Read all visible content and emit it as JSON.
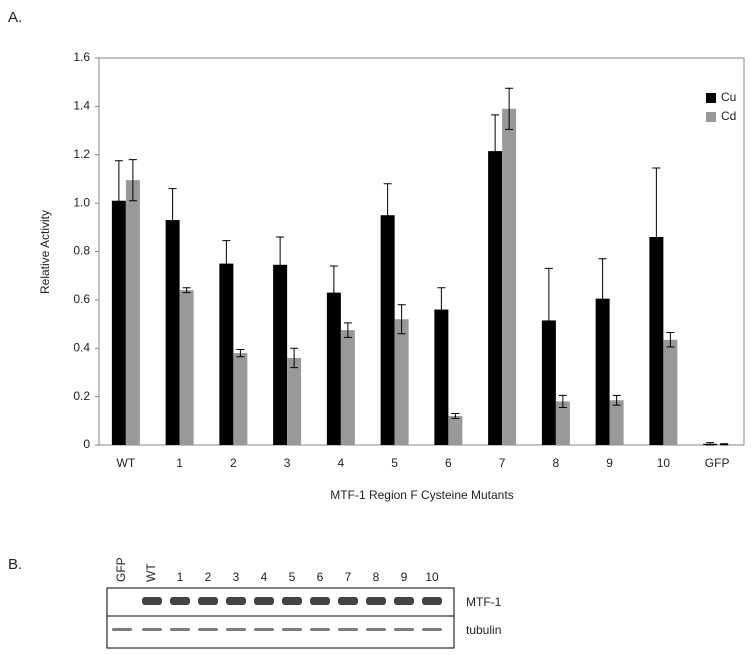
{
  "panel_a": "A.",
  "panel_b": "B.",
  "chart_data": {
    "type": "bar",
    "x_label": "MTF-1 Region F Cysteine Mutants",
    "y_label": "Relative Activity",
    "categories": [
      "WT",
      "1",
      "2",
      "3",
      "4",
      "5",
      "6",
      "7",
      "8",
      "9",
      "10",
      "GFP"
    ],
    "series": [
      {
        "name": "Cu",
        "color": "#000000",
        "values": [
          1.01,
          0.93,
          0.75,
          0.745,
          0.63,
          0.95,
          0.56,
          1.215,
          0.515,
          0.605,
          0.86,
          0.005
        ],
        "errors": [
          0.165,
          0.13,
          0.095,
          0.115,
          0.11,
          0.13,
          0.09,
          0.15,
          0.215,
          0.165,
          0.285,
          0.005
        ]
      },
      {
        "name": "Cd",
        "color": "#999999",
        "values": [
          1.095,
          0.64,
          0.38,
          0.36,
          0.475,
          0.52,
          0.12,
          1.39,
          0.18,
          0.185,
          0.435,
          0.003
        ],
        "errors": [
          0.085,
          0.01,
          0.015,
          0.04,
          0.03,
          0.06,
          0.01,
          0.085,
          0.025,
          0.02,
          0.03,
          0.002
        ]
      }
    ],
    "ylim": [
      0,
      1.6
    ],
    "yticks": [
      0,
      0.2,
      0.4,
      0.6,
      0.8,
      {
        "value": 1,
        "label": "1.0"
      },
      1.2,
      1.4,
      1.6
    ],
    "grid": false,
    "legend": "top-right"
  },
  "blot": {
    "lanes": [
      "GFP",
      "WT",
      "1",
      "2",
      "3",
      "4",
      "5",
      "6",
      "7",
      "8",
      "9",
      "10"
    ],
    "rows": [
      "MTF-1",
      "tubulin"
    ]
  }
}
